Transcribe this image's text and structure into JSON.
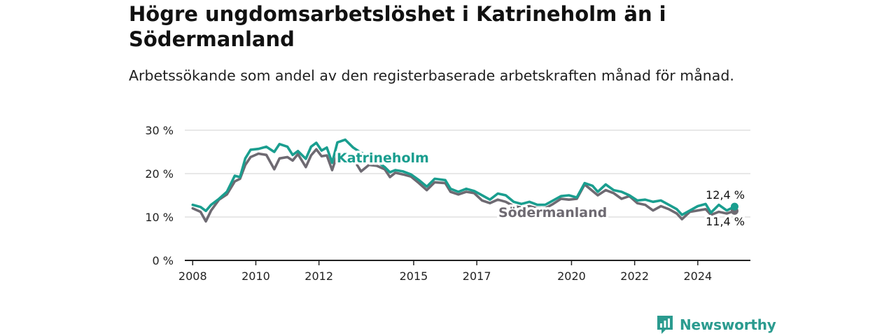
{
  "title": "Högre ungdomsarbetslöshet i Katrineholm än i Södermanland",
  "subtitle": "Arbetssökande som andel av den registerbaserade arbetskraften månad för månad.",
  "brand": {
    "name": "Newsworthy",
    "icon": "newsworthy-logo-icon"
  },
  "colors": {
    "katrineholm": "#1a9e8f",
    "sodermanland": "#6e6a72",
    "grid": "#d9d9d9",
    "axis": "#222222"
  },
  "chart_data": {
    "type": "line",
    "title": "Högre ungdomsarbetslöshet i Katrineholm än i Södermanland",
    "ylabel": "",
    "xlabel": "",
    "ylim": [
      0,
      30
    ],
    "yticks": [
      0,
      10,
      20,
      30
    ],
    "ytick_labels": [
      "0 %",
      "10 %",
      "20 %",
      "30 %"
    ],
    "xlim": [
      "2007-10",
      "2025-09"
    ],
    "xticks": [
      "2008-01",
      "2010-01",
      "2012-01",
      "2015-01",
      "2017-01",
      "2020-01",
      "2022-01",
      "2024-01"
    ],
    "xtick_labels": [
      "2008",
      "2010",
      "2012",
      "2015",
      "2017",
      "2020",
      "2022",
      "2024"
    ],
    "grid": true,
    "series": [
      {
        "name": "Katrineholm",
        "color": "#1a9e8f",
        "end_label": "12,4 %",
        "points": [
          [
            "2008-01",
            12.8
          ],
          [
            "2008-04",
            12.3
          ],
          [
            "2008-06",
            11.4
          ],
          [
            "2008-08",
            12.8
          ],
          [
            "2008-11",
            14.2
          ],
          [
            "2009-02",
            15.8
          ],
          [
            "2009-05",
            19.5
          ],
          [
            "2009-07",
            19.2
          ],
          [
            "2009-09",
            23.5
          ],
          [
            "2009-11",
            25.5
          ],
          [
            "2010-02",
            25.7
          ],
          [
            "2010-05",
            26.2
          ],
          [
            "2010-08",
            25.0
          ],
          [
            "2010-10",
            26.8
          ],
          [
            "2011-01",
            26.2
          ],
          [
            "2011-03",
            24.3
          ],
          [
            "2011-05",
            25.2
          ],
          [
            "2011-08",
            23.4
          ],
          [
            "2011-10",
            26.2
          ],
          [
            "2011-12",
            27.1
          ],
          [
            "2012-02",
            25.3
          ],
          [
            "2012-04",
            26.0
          ],
          [
            "2012-06",
            22.5
          ],
          [
            "2012-08",
            27.2
          ],
          [
            "2012-11",
            27.8
          ],
          [
            "2013-02",
            26.0
          ],
          [
            "2013-05",
            24.8
          ],
          [
            "2013-08",
            24.0
          ],
          [
            "2013-11",
            22.8
          ],
          [
            "2014-02",
            21.5
          ],
          [
            "2014-04",
            20.3
          ],
          [
            "2014-06",
            20.8
          ],
          [
            "2014-09",
            20.5
          ],
          [
            "2014-12",
            19.8
          ],
          [
            "2015-03",
            18.5
          ],
          [
            "2015-06",
            17.0
          ],
          [
            "2015-09",
            18.8
          ],
          [
            "2016-01",
            18.5
          ],
          [
            "2016-03",
            16.5
          ],
          [
            "2016-06",
            15.8
          ],
          [
            "2016-09",
            16.5
          ],
          [
            "2016-12",
            16.0
          ],
          [
            "2017-03",
            15.0
          ],
          [
            "2017-06",
            14.0
          ],
          [
            "2017-09",
            15.4
          ],
          [
            "2017-12",
            15.0
          ],
          [
            "2018-03",
            13.5
          ],
          [
            "2018-06",
            13.0
          ],
          [
            "2018-09",
            13.5
          ],
          [
            "2018-12",
            12.8
          ],
          [
            "2019-03",
            12.8
          ],
          [
            "2019-06",
            13.8
          ],
          [
            "2019-09",
            14.8
          ],
          [
            "2019-12",
            15.0
          ],
          [
            "2020-03",
            14.5
          ],
          [
            "2020-06",
            17.8
          ],
          [
            "2020-09",
            17.2
          ],
          [
            "2020-11",
            15.8
          ],
          [
            "2021-02",
            17.5
          ],
          [
            "2021-05",
            16.2
          ],
          [
            "2021-08",
            15.8
          ],
          [
            "2021-11",
            15.0
          ],
          [
            "2022-02",
            13.8
          ],
          [
            "2022-05",
            14.0
          ],
          [
            "2022-08",
            13.5
          ],
          [
            "2022-11",
            13.8
          ],
          [
            "2023-02",
            12.8
          ],
          [
            "2023-05",
            11.8
          ],
          [
            "2023-07",
            10.5
          ],
          [
            "2023-10",
            11.5
          ],
          [
            "2024-01",
            12.5
          ],
          [
            "2024-04",
            13.0
          ],
          [
            "2024-06",
            11.0
          ],
          [
            "2024-09",
            12.8
          ],
          [
            "2024-12",
            11.5
          ],
          [
            "2025-03",
            12.4
          ]
        ]
      },
      {
        "name": "Södermanland",
        "color": "#6e6a72",
        "end_label": "11,4 %",
        "points": [
          [
            "2008-01",
            12.0
          ],
          [
            "2008-04",
            11.2
          ],
          [
            "2008-06",
            9.0
          ],
          [
            "2008-08",
            11.5
          ],
          [
            "2008-11",
            14.0
          ],
          [
            "2009-02",
            15.2
          ],
          [
            "2009-05",
            18.2
          ],
          [
            "2009-07",
            18.8
          ],
          [
            "2009-09",
            22.0
          ],
          [
            "2009-11",
            23.8
          ],
          [
            "2010-02",
            24.6
          ],
          [
            "2010-05",
            24.3
          ],
          [
            "2010-08",
            21.0
          ],
          [
            "2010-10",
            23.5
          ],
          [
            "2011-01",
            23.8
          ],
          [
            "2011-03",
            23.0
          ],
          [
            "2011-05",
            24.5
          ],
          [
            "2011-08",
            21.5
          ],
          [
            "2011-10",
            24.2
          ],
          [
            "2011-12",
            25.6
          ],
          [
            "2012-02",
            24.0
          ],
          [
            "2012-04",
            24.2
          ],
          [
            "2012-06",
            20.8
          ],
          [
            "2012-08",
            24.5
          ],
          [
            "2012-11",
            25.0
          ],
          [
            "2013-02",
            23.5
          ],
          [
            "2013-05",
            20.5
          ],
          [
            "2013-08",
            22.0
          ],
          [
            "2013-11",
            21.8
          ],
          [
            "2014-02",
            21.0
          ],
          [
            "2014-04",
            19.2
          ],
          [
            "2014-06",
            20.2
          ],
          [
            "2014-09",
            19.8
          ],
          [
            "2014-12",
            19.3
          ],
          [
            "2015-03",
            17.8
          ],
          [
            "2015-06",
            16.2
          ],
          [
            "2015-09",
            18.0
          ],
          [
            "2016-01",
            17.8
          ],
          [
            "2016-03",
            15.8
          ],
          [
            "2016-06",
            15.2
          ],
          [
            "2016-09",
            15.8
          ],
          [
            "2016-12",
            15.5
          ],
          [
            "2017-03",
            13.8
          ],
          [
            "2017-06",
            13.2
          ],
          [
            "2017-09",
            14.0
          ],
          [
            "2017-12",
            13.5
          ],
          [
            "2018-03",
            12.5
          ],
          [
            "2018-06",
            12.2
          ],
          [
            "2018-09",
            12.5
          ],
          [
            "2018-12",
            12.0
          ],
          [
            "2019-03",
            12.0
          ],
          [
            "2019-06",
            13.0
          ],
          [
            "2019-09",
            14.2
          ],
          [
            "2019-12",
            14.0
          ],
          [
            "2020-03",
            14.2
          ],
          [
            "2020-06",
            17.5
          ],
          [
            "2020-09",
            16.0
          ],
          [
            "2020-11",
            15.0
          ],
          [
            "2021-02",
            16.2
          ],
          [
            "2021-05",
            15.5
          ],
          [
            "2021-08",
            14.2
          ],
          [
            "2021-11",
            14.8
          ],
          [
            "2022-02",
            13.2
          ],
          [
            "2022-05",
            12.8
          ],
          [
            "2022-08",
            11.5
          ],
          [
            "2022-11",
            12.5
          ],
          [
            "2023-02",
            11.8
          ],
          [
            "2023-05",
            10.8
          ],
          [
            "2023-07",
            9.5
          ],
          [
            "2023-10",
            11.2
          ],
          [
            "2024-01",
            11.5
          ],
          [
            "2024-04",
            11.8
          ],
          [
            "2024-06",
            10.5
          ],
          [
            "2024-09",
            11.2
          ],
          [
            "2024-12",
            10.8
          ],
          [
            "2025-03",
            11.4
          ]
        ]
      }
    ],
    "annotations": [
      "Katrineholm",
      "Södermanland"
    ]
  }
}
